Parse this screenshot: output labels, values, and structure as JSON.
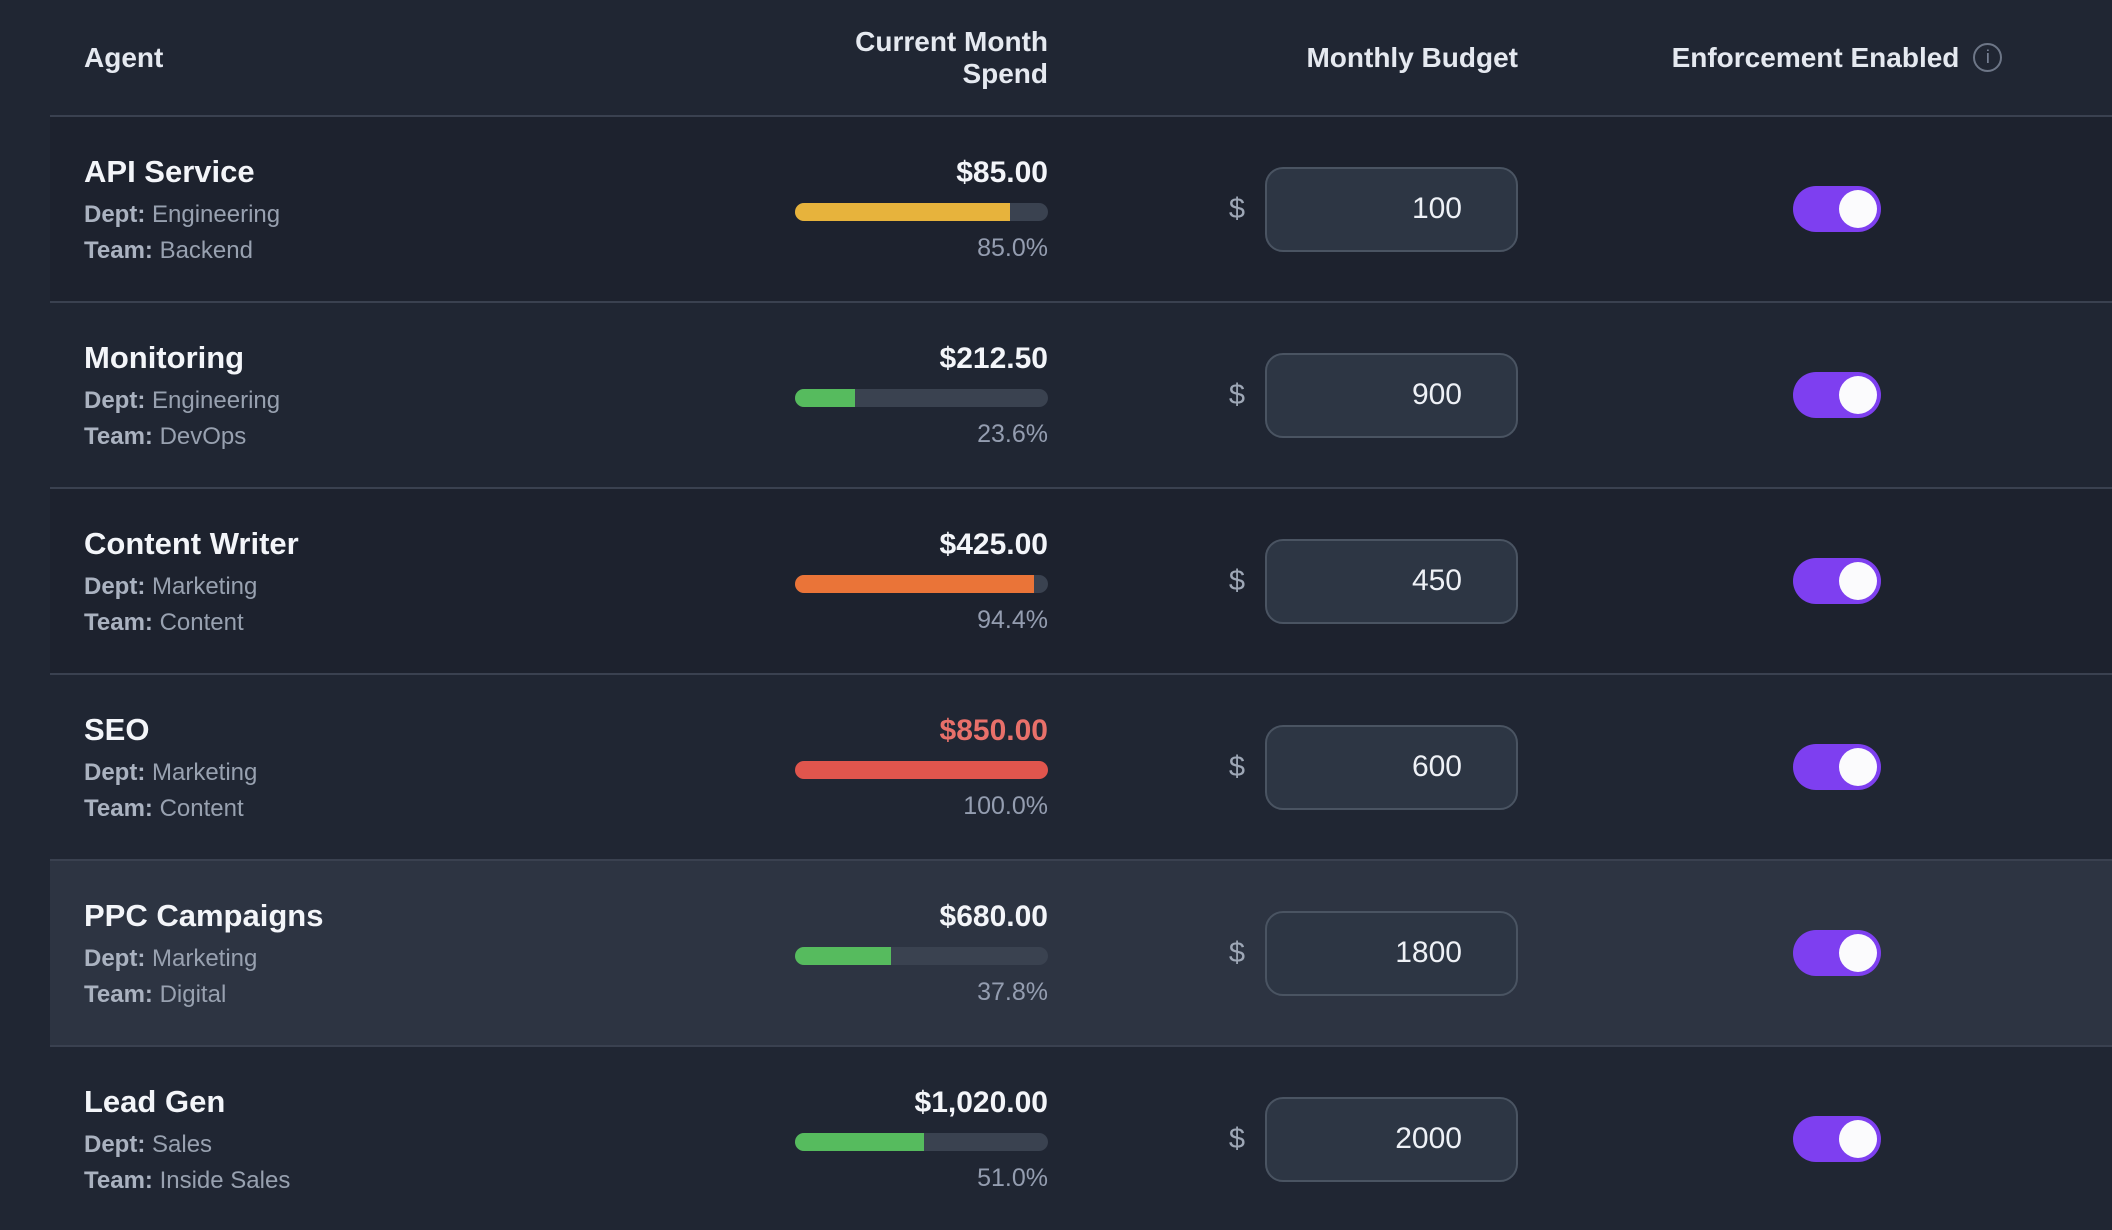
{
  "header": {
    "agent": "Agent",
    "spend": "Current Month Spend",
    "budget": "Monthly Budget",
    "enforcement": "Enforcement Enabled",
    "info_icon_glyph": "i"
  },
  "labels": {
    "dept": "Dept:",
    "team": "Team:"
  },
  "currency_prefix": "$",
  "colors": {
    "accent_toggle": "#7e3ff0",
    "bar_amber": "#e7b33c",
    "bar_green": "#56bb5e",
    "bar_orange": "#ea7438",
    "bar_red": "#e0554d",
    "over_budget_text": "#e8706a",
    "track": "#3a4250"
  },
  "rows": [
    {
      "name": "API Service",
      "dept": "Engineering",
      "team": "Backend",
      "spend": "$85.00",
      "pct": 85.0,
      "pct_text": "85.0%",
      "bar_color": "#e7b33c",
      "budget": "100",
      "enforcement_enabled": true
    },
    {
      "name": "Monitoring",
      "dept": "Engineering",
      "team": "DevOps",
      "spend": "$212.50",
      "pct": 23.6,
      "pct_text": "23.6%",
      "bar_color": "#56bb5e",
      "budget": "900",
      "enforcement_enabled": true
    },
    {
      "name": "Content Writer",
      "dept": "Marketing",
      "team": "Content",
      "spend": "$425.00",
      "pct": 94.4,
      "pct_text": "94.4%",
      "bar_color": "#ea7438",
      "budget": "450",
      "enforcement_enabled": true
    },
    {
      "name": "SEO",
      "dept": "Marketing",
      "team": "Content",
      "spend": "$850.00",
      "pct": 100.0,
      "pct_text": "100.0%",
      "bar_color": "#e0554d",
      "spend_color": "#e8706a",
      "budget": "600",
      "enforcement_enabled": true
    },
    {
      "name": "PPC Campaigns",
      "dept": "Marketing",
      "team": "Digital",
      "spend": "$680.00",
      "pct": 37.8,
      "pct_text": "37.8%",
      "bar_color": "#56bb5e",
      "budget": "1800",
      "enforcement_enabled": true,
      "highlighted": true
    },
    {
      "name": "Lead Gen",
      "dept": "Sales",
      "team": "Inside Sales",
      "spend": "$1,020.00",
      "pct": 51.0,
      "pct_text": "51.0%",
      "bar_color": "#56bb5e",
      "budget": "2000",
      "enforcement_enabled": true
    }
  ]
}
